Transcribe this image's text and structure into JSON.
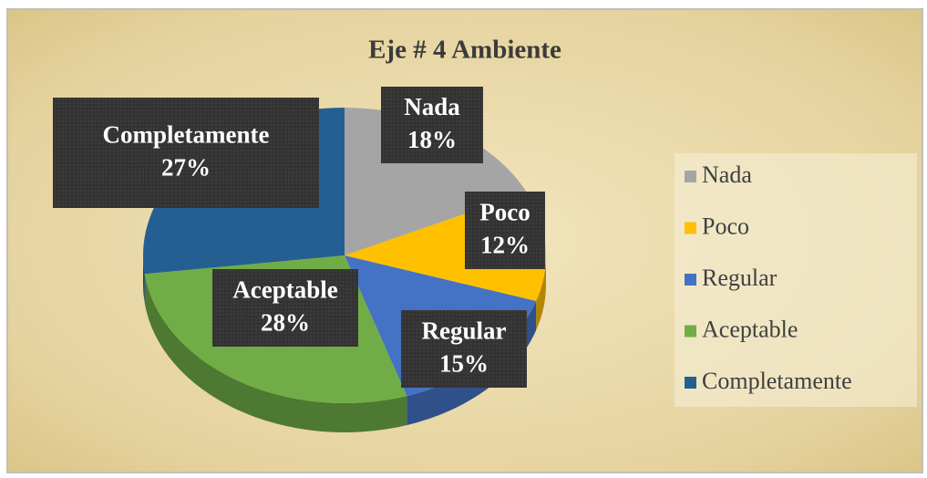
{
  "chart_data": {
    "type": "pie",
    "title": "Eje # 4 Ambiente",
    "categories": [
      "Nada",
      "Poco",
      "Regular",
      "Aceptable",
      "Completamente"
    ],
    "values": [
      18,
      12,
      15,
      28,
      27
    ],
    "value_labels": [
      "18%",
      "12%",
      "15%",
      "28%",
      "27%"
    ],
    "colors": [
      "#a5a5a5",
      "#ffc000",
      "#4472c4",
      "#70ad47",
      "#255e91"
    ],
    "legend": "right"
  }
}
